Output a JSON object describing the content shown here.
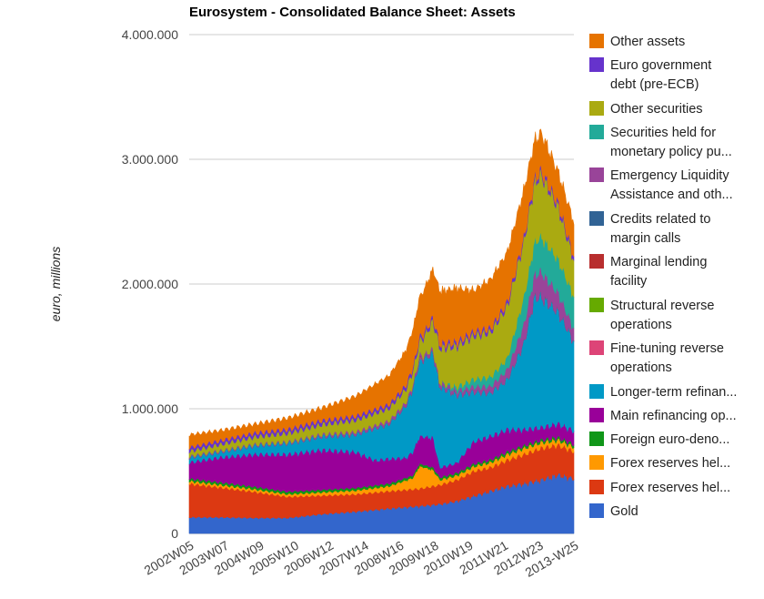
{
  "chart_data": {
    "type": "area",
    "stacked": true,
    "title": "Eurosystem - Consolidated Balance Sheet: Assets",
    "xlabel": "",
    "ylabel": "euro, millions",
    "ylim": [
      0,
      4000000
    ],
    "y_ticks": [
      0,
      1000000,
      2000000,
      3000000,
      4000000
    ],
    "y_tick_labels": [
      "0",
      "1.000.000",
      "2.000.000",
      "3.000.000",
      "4.000.000"
    ],
    "x_ticks": [
      "2002W05",
      "2003W07",
      "2004W09",
      "2005W10",
      "2006W12",
      "2007W14",
      "2008W16",
      "2009W18",
      "2010W19",
      "2011W21",
      "2012W23",
      "2013-W25"
    ],
    "x_positions": [
      2002.08,
      2003.12,
      2004.16,
      2005.19,
      2006.22,
      2007.26,
      2008.3,
      2009.33,
      2010.35,
      2011.39,
      2012.43,
      2013.47
    ],
    "x_range": [
      2002.08,
      2013.47
    ],
    "grid": true,
    "legend_position": "right",
    "series": [
      {
        "name": "Gold",
        "color": "#3366cc",
        "x": [
          2002.08,
          2003.0,
          2004.0,
          2005.0,
          2006.0,
          2007.0,
          2008.0,
          2008.9,
          2009.5,
          2010.0,
          2010.5,
          2011.0,
          2011.5,
          2012.0,
          2012.5,
          2013.0,
          2013.47
        ],
        "values": [
          130000,
          130000,
          125000,
          125000,
          155000,
          175000,
          200000,
          220000,
          235000,
          260000,
          300000,
          340000,
          380000,
          400000,
          430000,
          470000,
          440000
        ]
      },
      {
        "name": "Forex reserves held outside euro area",
        "color": "#dc3912",
        "x": [
          2002.08,
          2003.0,
          2004.0,
          2005.0,
          2006.0,
          2007.0,
          2008.0,
          2008.9,
          2009.5,
          2010.0,
          2010.5,
          2011.0,
          2011.5,
          2012.0,
          2012.5,
          2013.0,
          2013.47
        ],
        "values": [
          270000,
          240000,
          210000,
          170000,
          150000,
          140000,
          140000,
          140000,
          155000,
          170000,
          200000,
          190000,
          210000,
          235000,
          255000,
          240000,
          220000
        ]
      },
      {
        "name": "Forex reserves held in euro area",
        "color": "#ff9900",
        "x": [
          2002.08,
          2003.0,
          2004.0,
          2005.0,
          2006.0,
          2007.0,
          2008.0,
          2008.7,
          2008.9,
          2009.3,
          2009.5,
          2010.0,
          2011.0,
          2012.0,
          2013.0,
          2013.47
        ],
        "values": [
          20000,
          20000,
          20000,
          20000,
          25000,
          30000,
          40000,
          90000,
          180000,
          130000,
          40000,
          35000,
          40000,
          50000,
          40000,
          35000
        ]
      },
      {
        "name": "Foreign euro-denominated claims",
        "color": "#109618",
        "x": [
          2002.08,
          2005.0,
          2008.0,
          2009.0,
          2011.0,
          2013.47
        ],
        "values": [
          20000,
          20000,
          20000,
          20000,
          20000,
          20000
        ]
      },
      {
        "name": "Main refinancing operations",
        "color": "#990099",
        "x": [
          2002.08,
          2003.0,
          2004.0,
          2005.0,
          2006.0,
          2007.0,
          2007.6,
          2008.0,
          2008.5,
          2008.9,
          2009.3,
          2009.5,
          2010.0,
          2010.5,
          2011.0,
          2011.5,
          2012.0,
          2012.5,
          2013.0,
          2013.47
        ],
        "values": [
          130000,
          200000,
          260000,
          300000,
          320000,
          290000,
          200000,
          200000,
          160000,
          220000,
          240000,
          80000,
          80000,
          180000,
          190000,
          180000,
          130000,
          100000,
          110000,
          110000
        ]
      },
      {
        "name": "Longer-term refinancing operations",
        "color": "#0099c6",
        "x": [
          2002.08,
          2003.0,
          2004.0,
          2005.0,
          2006.0,
          2007.0,
          2007.6,
          2008.0,
          2008.5,
          2008.9,
          2009.3,
          2009.5,
          2010.0,
          2010.5,
          2011.0,
          2011.5,
          2012.0,
          2012.3,
          2012.5,
          2013.0,
          2013.47
        ],
        "values": [
          40000,
          45000,
          70000,
          90000,
          110000,
          140000,
          260000,
          280000,
          420000,
          600000,
          680000,
          650000,
          550000,
          400000,
          350000,
          400000,
          700000,
          1050000,
          1050000,
          900000,
          720000
        ]
      },
      {
        "name": "Fine-tuning reverse operations",
        "color": "#dd4477",
        "x": [
          2002.08,
          2008.8,
          2008.9,
          2009.0,
          2013.47
        ],
        "values": [
          0,
          0,
          20000,
          0,
          0
        ]
      },
      {
        "name": "Structural reverse operations",
        "color": "#66aa00",
        "x": [
          2002.08,
          2013.47
        ],
        "values": [
          0,
          0
        ]
      },
      {
        "name": "Marginal lending facility",
        "color": "#b82e2e",
        "x": [
          2002.08,
          2008.8,
          2008.9,
          2009.0,
          2013.47
        ],
        "values": [
          0,
          0,
          10000,
          0,
          0
        ]
      },
      {
        "name": "Credits related to margin calls",
        "color": "#316395",
        "x": [
          2002.08,
          2013.47
        ],
        "values": [
          0,
          0
        ]
      },
      {
        "name": "Emergency Liquidity Assistance and other claims",
        "color": "#994499",
        "x": [
          2002.08,
          2003.0,
          2004.0,
          2005.0,
          2006.0,
          2007.0,
          2008.0,
          2008.9,
          2009.5,
          2010.0,
          2010.5,
          2011.0,
          2011.5,
          2012.0,
          2012.5,
          2013.0,
          2013.47
        ],
        "values": [
          10000,
          10000,
          10000,
          10000,
          15000,
          20000,
          25000,
          30000,
          30000,
          30000,
          40000,
          50000,
          80000,
          150000,
          200000,
          150000,
          100000
        ]
      },
      {
        "name": "Securities held for monetary policy purposes",
        "color": "#22aa99",
        "x": [
          2002.08,
          2009.5,
          2010.0,
          2010.5,
          2011.0,
          2011.5,
          2012.0,
          2012.5,
          2013.0,
          2013.47
        ],
        "values": [
          0,
          0,
          30000,
          60000,
          75000,
          90000,
          220000,
          280000,
          270000,
          260000
        ]
      },
      {
        "name": "Other securities",
        "color": "#aaaa11",
        "x": [
          2002.08,
          2003.0,
          2004.0,
          2005.0,
          2006.0,
          2007.0,
          2008.0,
          2008.9,
          2009.5,
          2010.0,
          2010.5,
          2011.0,
          2011.5,
          2012.0,
          2012.5,
          2013.0,
          2013.47
        ],
        "values": [
          40000,
          50000,
          60000,
          70000,
          80000,
          95000,
          100000,
          110000,
          280000,
          330000,
          350000,
          360000,
          420000,
          450000,
          500000,
          420000,
          290000
        ]
      },
      {
        "name": "Euro government debt (pre-ECB)",
        "color": "#6633cc",
        "x": [
          2002.08,
          2013.47
        ],
        "values": [
          30000,
          30000
        ]
      },
      {
        "name": "Other assets",
        "color": "#e67300",
        "x": [
          2002.08,
          2003.0,
          2004.0,
          2005.0,
          2006.0,
          2007.0,
          2008.0,
          2008.9,
          2009.5,
          2010.0,
          2010.5,
          2011.0,
          2011.5,
          2012.0,
          2012.3,
          2012.5,
          2013.0,
          2013.47
        ],
        "values": [
          100000,
          80000,
          70000,
          90000,
          100000,
          160000,
          230000,
          320000,
          420000,
          430000,
          330000,
          390000,
          400000,
          380000,
          300000,
          300000,
          250000,
          270000
        ]
      }
    ]
  },
  "legend": [
    {
      "line1": "Other assets",
      "line2": "",
      "color": "#e67300"
    },
    {
      "line1": "Euro government",
      "line2": "debt (pre-ECB)",
      "color": "#6633cc"
    },
    {
      "line1": "Other securities",
      "line2": "",
      "color": "#aaaa11"
    },
    {
      "line1": "Securities held for",
      "line2": "monetary policy pu...",
      "color": "#22aa99"
    },
    {
      "line1": "Emergency Liquidity",
      "line2": "Assistance and oth...",
      "color": "#994499"
    },
    {
      "line1": "Credits related to",
      "line2": "margin calls",
      "color": "#316395"
    },
    {
      "line1": "Marginal lending",
      "line2": "facility",
      "color": "#b82e2e"
    },
    {
      "line1": "Structural reverse",
      "line2": "operations",
      "color": "#66aa00"
    },
    {
      "line1": "Fine-tuning reverse",
      "line2": "operations",
      "color": "#dd4477"
    },
    {
      "line1": "Longer-term refinan...",
      "line2": "",
      "color": "#0099c6"
    },
    {
      "line1": "Main refinancing op...",
      "line2": "",
      "color": "#990099"
    },
    {
      "line1": "Foreign euro-deno...",
      "line2": "",
      "color": "#109618"
    },
    {
      "line1": "Forex reserves hel...",
      "line2": "",
      "color": "#ff9900"
    },
    {
      "line1": "Forex reserves hel...",
      "line2": "",
      "color": "#dc3912"
    },
    {
      "line1": "Gold",
      "line2": "",
      "color": "#3366cc"
    }
  ]
}
